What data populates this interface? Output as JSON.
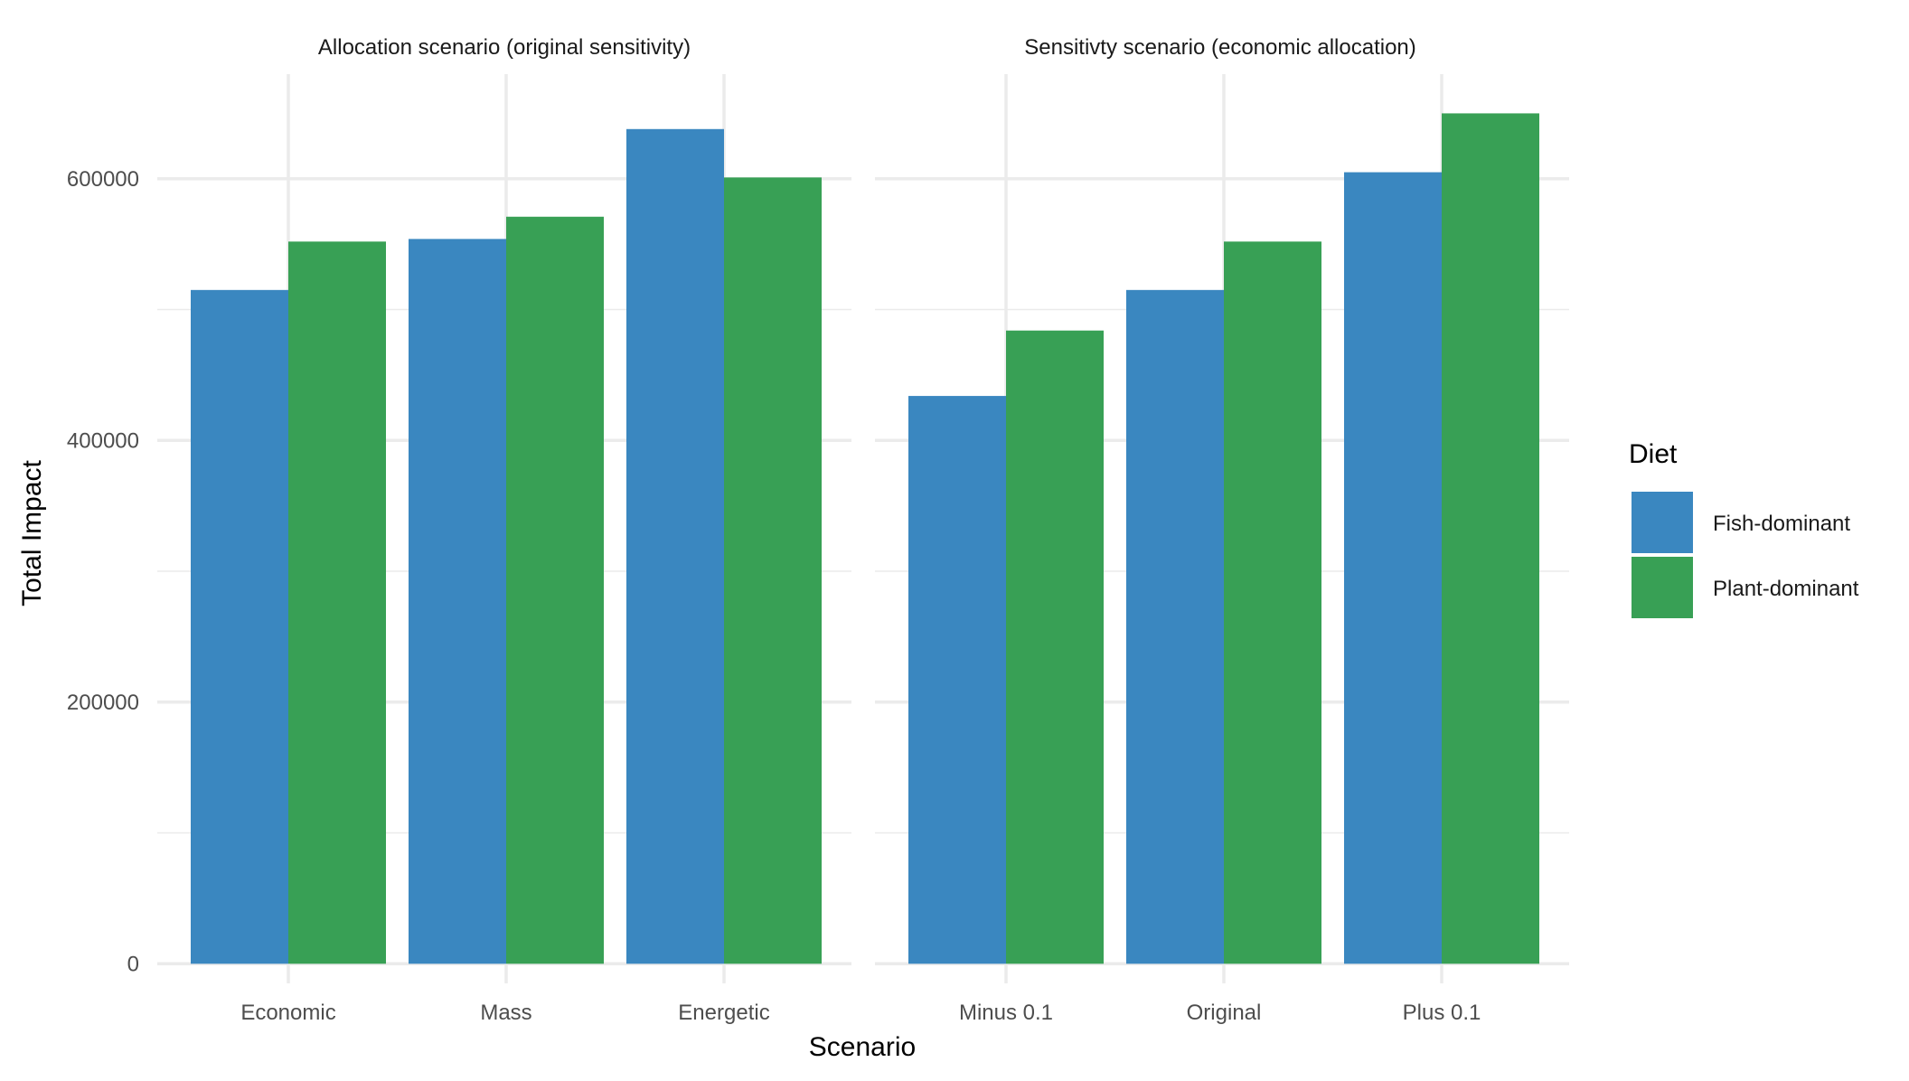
{
  "chart_data": {
    "type": "bar",
    "xlabel": "Scenario",
    "ylabel": "Total Impact",
    "ylim": [
      -15000,
      680000
    ],
    "y_ticks": [
      0,
      200000,
      400000,
      600000
    ],
    "y_tick_labels": [
      "0",
      "200000",
      "400000",
      "600000"
    ],
    "grid": true,
    "facets": [
      {
        "title": "Allocation scenario (original sensitivity)",
        "categories": [
          "Economic",
          "Mass",
          "Energetic"
        ],
        "series": [
          {
            "name": "Fish-dominant",
            "values": [
              515000,
              554000,
              638000
            ]
          },
          {
            "name": "Plant-dominant",
            "values": [
              552000,
              571000,
              601000
            ]
          }
        ]
      },
      {
        "title": "Sensitivty scenario (economic allocation)",
        "categories": [
          "Minus 0.1",
          "Original",
          "Plus 0.1"
        ],
        "series": [
          {
            "name": "Fish-dominant",
            "values": [
              434000,
              515000,
              605000
            ]
          },
          {
            "name": "Plant-dominant",
            "values": [
              484000,
              552000,
              650000
            ]
          }
        ]
      }
    ],
    "legend": {
      "title": "Diet",
      "position": "right",
      "entries": [
        "Fish-dominant",
        "Plant-dominant"
      ]
    },
    "colors": {
      "Fish-dominant": "#3A87C0",
      "Plant-dominant": "#38A055"
    }
  }
}
